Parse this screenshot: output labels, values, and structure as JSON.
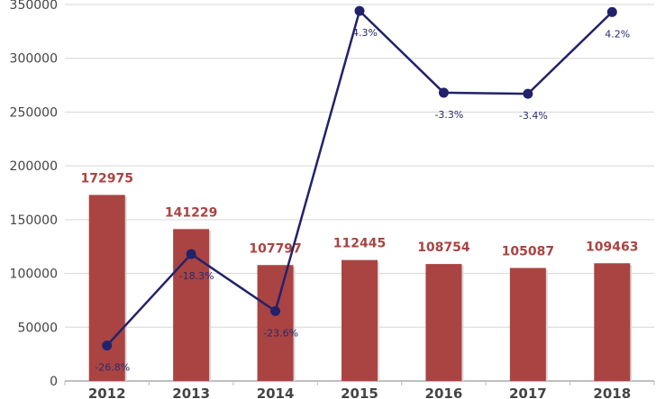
{
  "chart_data": {
    "type": "bar+line",
    "categories": [
      "2012",
      "2013",
      "2014",
      "2015",
      "2016",
      "2017",
      "2018"
    ],
    "bars": {
      "values": [
        172975,
        141229,
        107797,
        112445,
        108754,
        105087,
        109463
      ],
      "labels": [
        "172975",
        "141229",
        "107797",
        "112445",
        "108754",
        "105087",
        "109463"
      ],
      "color": "#a94442"
    },
    "line": {
      "values": [
        33000,
        118000,
        65000,
        344000,
        268000,
        267000,
        343000
      ],
      "labels": [
        "-26.8%",
        "-18.3%",
        "-23.6%",
        "4.3%",
        "-3.3%",
        "-3.4%",
        "4.2%"
      ],
      "color": "#22226b"
    },
    "ylim": [
      0,
      350000
    ],
    "yticks": [
      0,
      50000,
      100000,
      150000,
      200000,
      250000,
      300000,
      350000
    ],
    "ytick_labels": [
      "0",
      "50000",
      "100000",
      "150000",
      "200000",
      "250000",
      "300000",
      "350000"
    ],
    "grid": true,
    "legend": "none"
  }
}
